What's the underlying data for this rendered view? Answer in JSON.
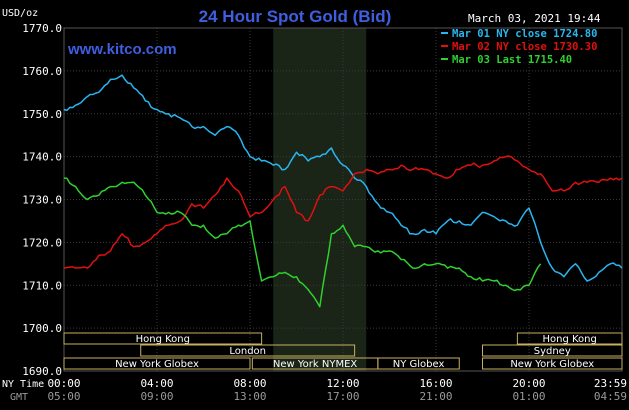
{
  "header": {
    "title": "24 Hour Spot Gold (Bid)",
    "unit": "USD/oz",
    "timestamp": "March 03, 2021 19:44",
    "watermark": "www.kitco.com"
  },
  "x_labels": {
    "row1_label": "NY Time",
    "row2_label": "GMT"
  },
  "sessions": [
    {
      "name": "Hong Kong",
      "start": 0,
      "end": 8.5,
      "row": 0
    },
    {
      "name": "London",
      "start": 3.3,
      "end": 12.5,
      "row": 1
    },
    {
      "name": "New York Globex",
      "start": 0,
      "end": 8.0,
      "row": 2
    },
    {
      "name": "New York NYMEX",
      "start": 8.1,
      "end": 13.5,
      "row": 2
    },
    {
      "name": "NY Globex",
      "start": 13.5,
      "end": 17.0,
      "row": 2
    },
    {
      "name": "Hong Kong",
      "start": 19.5,
      "end": 24.0,
      "row": 0
    },
    {
      "name": "Sydney",
      "start": 18.0,
      "end": 24.0,
      "row": 1
    },
    {
      "name": "New York Globex",
      "start": 18.0,
      "end": 24.0,
      "row": 2
    }
  ],
  "colors": {
    "background": "#000000",
    "grid": "#3a3a3a",
    "highlight": "#1a2417",
    "mar01": "#29b6f0",
    "mar02": "#e01010",
    "mar03": "#2fd02f",
    "title": "#3f5fe0"
  },
  "chart_data": {
    "type": "line",
    "title": "24 Hour Spot Gold (Bid)",
    "ylabel": "USD/oz",
    "xlabel": "",
    "ylim": [
      1690,
      1770
    ],
    "xlim": [
      0,
      24
    ],
    "yticks": [
      "1770.0",
      "1760.0",
      "1750.0",
      "1740.0",
      "1730.0",
      "1720.0",
      "1710.0",
      "1700.0",
      "1690.0"
    ],
    "xticks_ny": [
      "00:00",
      "04:00",
      "08:00",
      "12:00",
      "16:00",
      "20:00",
      "23:59"
    ],
    "xticks_gmt": [
      "05:00",
      "09:00",
      "13:00",
      "17:00",
      "21:00",
      "01:00",
      "04:59"
    ],
    "grid": true,
    "highlight_range": [
      9,
      13
    ],
    "legend_position": "top-right",
    "series": [
      {
        "name": "Mar 01 NY close 1724.80",
        "color_key": "mar01",
        "x": [
          0,
          0.5,
          1,
          1.5,
          2,
          2.5,
          3,
          3.5,
          4,
          4.5,
          5,
          5.5,
          6,
          6.5,
          7,
          7.5,
          8,
          8.5,
          9,
          9.5,
          10,
          10.5,
          11,
          11.5,
          12,
          12.5,
          13,
          13.5,
          14,
          14.5,
          15,
          15.5,
          16,
          16.5,
          17,
          17.5,
          18,
          18.5,
          19,
          19.5,
          20,
          20.5,
          21,
          21.5,
          22,
          22.5,
          23,
          23.5,
          24
        ],
        "y": [
          1751,
          1752,
          1754,
          1755,
          1758,
          1759,
          1756,
          1753,
          1751,
          1750,
          1749,
          1747,
          1747,
          1745,
          1747,
          1745,
          1740,
          1739,
          1738,
          1737,
          1741,
          1739,
          1740,
          1742,
          1738,
          1735,
          1733,
          1729,
          1727,
          1724,
          1722,
          1723,
          1722,
          1725,
          1725,
          1724,
          1727,
          1726,
          1725,
          1724,
          1728,
          1720,
          1714,
          1712,
          1715,
          1711,
          1713,
          1715,
          1714
        ]
      },
      {
        "name": "Mar 02 NY close 1730.30",
        "color_key": "mar02",
        "x": [
          0,
          0.5,
          1,
          1.5,
          2,
          2.5,
          3,
          3.5,
          4,
          4.5,
          5,
          5.5,
          6,
          6.5,
          7,
          7.5,
          8,
          8.5,
          9,
          9.5,
          10,
          10.5,
          11,
          11.5,
          12,
          12.5,
          13,
          13.5,
          14,
          14.5,
          15,
          15.5,
          16,
          16.5,
          17,
          17.5,
          18,
          18.5,
          19,
          19.5,
          20,
          20.5,
          21,
          21.5,
          22,
          22.5,
          23,
          23.5,
          24
        ],
        "y": [
          1714,
          1714,
          1714,
          1717,
          1718,
          1722,
          1719,
          1720,
          1722,
          1724,
          1725,
          1729,
          1728,
          1731,
          1735,
          1732,
          1726,
          1727,
          1730,
          1733,
          1727,
          1725,
          1731,
          1733,
          1732,
          1736,
          1737,
          1736,
          1737,
          1738,
          1737,
          1737,
          1736,
          1735,
          1737,
          1738,
          1738,
          1739,
          1740,
          1739,
          1737,
          1736,
          1732,
          1732,
          1734,
          1734,
          1734,
          1735,
          1735
        ]
      },
      {
        "name": "Mar 03 Last 1715.40",
        "color_key": "mar03",
        "x": [
          0,
          0.5,
          1,
          1.5,
          2,
          2.5,
          3,
          3.5,
          4,
          4.5,
          5,
          5.5,
          6,
          6.5,
          7,
          7.5,
          8,
          8.5,
          9,
          9.5,
          10,
          10.5,
          11,
          11.5,
          12,
          12.5,
          13,
          13.5,
          14,
          14.5,
          15,
          15.5,
          16,
          16.5,
          17,
          17.5,
          18,
          18.5,
          19,
          19.5,
          20,
          20.5
        ],
        "y": [
          1735,
          1733,
          1730,
          1731,
          1733,
          1734,
          1734,
          1731,
          1727,
          1727,
          1727,
          1724,
          1724,
          1721,
          1722,
          1724,
          1725,
          1711,
          1712,
          1713,
          1712,
          1709,
          1705,
          1722,
          1724,
          1719,
          1719,
          1718,
          1718,
          1716,
          1714,
          1715,
          1715,
          1714,
          1714,
          1712,
          1711,
          1711,
          1710,
          1709,
          1710,
          1715
        ]
      }
    ]
  }
}
